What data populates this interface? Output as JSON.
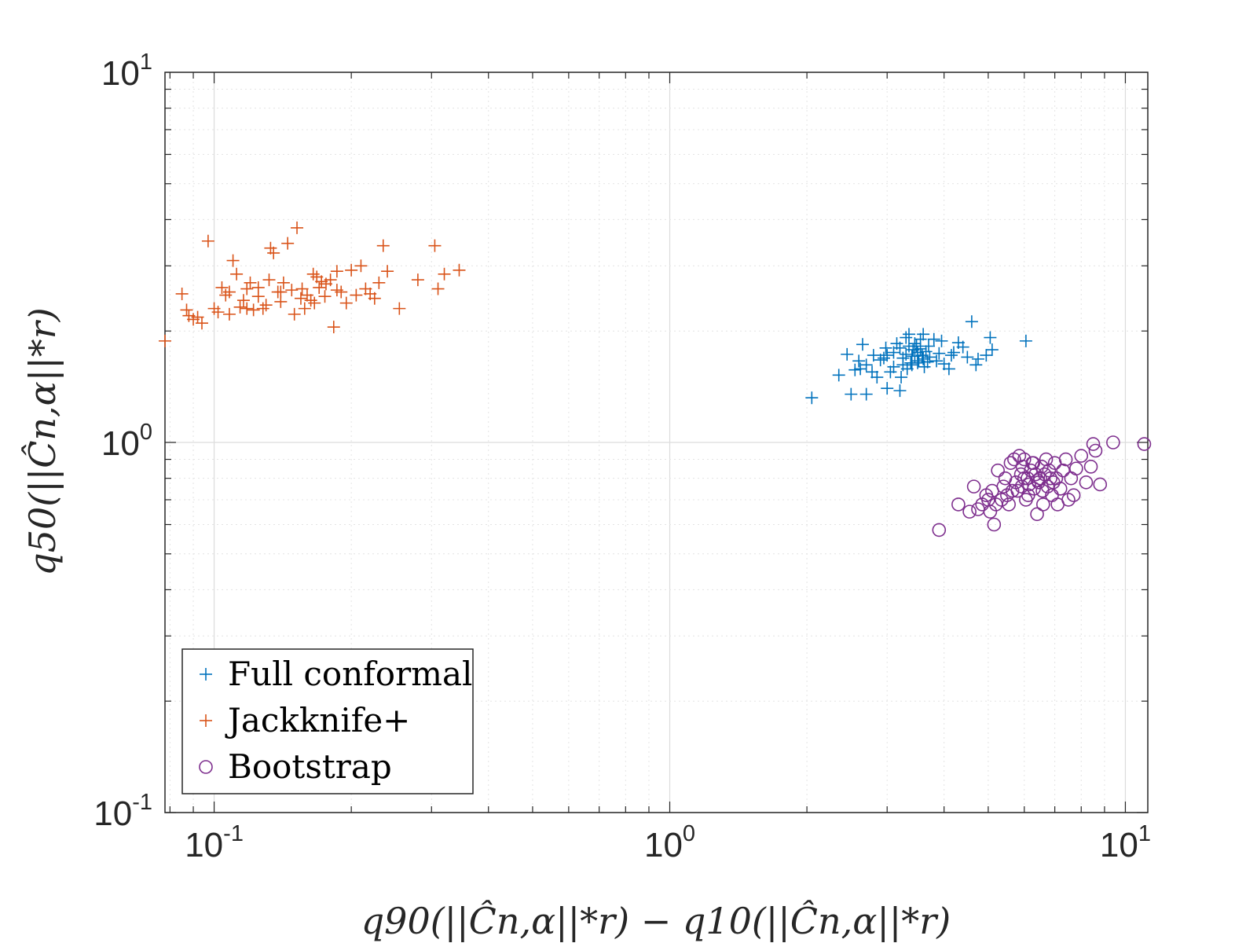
{
  "chart_data": {
    "type": "scatter",
    "title": "",
    "xlabel": "q90(||Ĉn,α||*r) − q10(||Ĉn,α||*r)",
    "ylabel": "q50(||Ĉn,α||*r)",
    "xscale": "log",
    "yscale": "log",
    "xlim": [
      0.078,
      11.2
    ],
    "ylim": [
      0.1,
      10
    ],
    "grid": true,
    "legend_location": "bottom-left",
    "x_ticks": [
      {
        "base": "10",
        "exp": "-1"
      },
      {
        "base": "10",
        "exp": "0"
      },
      {
        "base": "10",
        "exp": "1"
      }
    ],
    "y_ticks": [
      {
        "base": "10",
        "exp": "-1"
      },
      {
        "base": "10",
        "exp": "0"
      },
      {
        "base": "10",
        "exp": "1"
      }
    ],
    "series": [
      {
        "name": "Full conformal",
        "marker": "plus",
        "color": "#0072BD",
        "points": [
          [
            2.05,
            1.32
          ],
          [
            2.35,
            1.52
          ],
          [
            2.45,
            1.73
          ],
          [
            2.55,
            1.57
          ],
          [
            2.5,
            1.35
          ],
          [
            2.62,
            1.58
          ],
          [
            2.7,
            1.62
          ],
          [
            2.78,
            1.55
          ],
          [
            2.65,
            1.84
          ],
          [
            2.9,
            1.67
          ],
          [
            3.0,
            1.72
          ],
          [
            3.1,
            1.75
          ],
          [
            3.2,
            1.8
          ],
          [
            3.25,
            1.69
          ],
          [
            3.3,
            1.92
          ],
          [
            3.35,
            1.96
          ],
          [
            3.4,
            1.71
          ],
          [
            3.45,
            1.85
          ],
          [
            3.5,
            1.64
          ],
          [
            3.55,
            1.79
          ],
          [
            3.6,
            1.68
          ],
          [
            3.65,
            1.76
          ],
          [
            3.7,
            1.82
          ],
          [
            3.8,
            1.9
          ],
          [
            3.9,
            1.74
          ],
          [
            4.0,
            1.63
          ],
          [
            4.2,
            1.75
          ],
          [
            4.4,
            1.81
          ],
          [
            4.6,
            2.12
          ],
          [
            4.75,
            1.68
          ],
          [
            4.95,
            1.72
          ],
          [
            5.05,
            1.92
          ],
          [
            5.1,
            1.78
          ],
          [
            6.05,
            1.88
          ],
          [
            3.0,
            1.4
          ],
          [
            3.2,
            1.38
          ],
          [
            2.7,
            1.35
          ],
          [
            3.4,
            1.62
          ],
          [
            3.6,
            1.96
          ],
          [
            3.1,
            1.6
          ],
          [
            2.95,
            1.69
          ],
          [
            3.15,
            1.85
          ],
          [
            3.25,
            1.62
          ],
          [
            3.3,
            1.73
          ],
          [
            3.38,
            1.64
          ],
          [
            3.42,
            1.78
          ],
          [
            3.48,
            1.82
          ],
          [
            3.52,
            1.66
          ],
          [
            3.58,
            1.72
          ],
          [
            3.62,
            1.6
          ],
          [
            3.72,
            1.7
          ],
          [
            3.85,
            1.66
          ],
          [
            4.1,
            1.58
          ],
          [
            4.3,
            1.86
          ],
          [
            4.5,
            1.7
          ],
          [
            4.7,
            1.62
          ],
          [
            3.95,
            1.88
          ],
          [
            2.85,
            1.5
          ],
          [
            2.8,
            1.72
          ],
          [
            3.05,
            1.55
          ],
          [
            3.35,
            1.82
          ],
          [
            3.45,
            1.71
          ],
          [
            3.55,
            1.9
          ],
          [
            3.68,
            1.65
          ],
          [
            2.6,
            1.66
          ],
          [
            2.98,
            1.8
          ],
          [
            3.22,
            1.5
          ],
          [
            4.15,
            1.72
          ],
          [
            3.32,
            1.58
          ],
          [
            3.5,
            1.75
          ]
        ]
      },
      {
        "name": "Jackknife+",
        "marker": "plus",
        "color": "#D95319",
        "points": [
          [
            0.078,
            1.88
          ],
          [
            0.085,
            2.52
          ],
          [
            0.087,
            2.28
          ],
          [
            0.088,
            2.2
          ],
          [
            0.09,
            2.15
          ],
          [
            0.092,
            2.18
          ],
          [
            0.094,
            2.1
          ],
          [
            0.097,
            3.5
          ],
          [
            0.1,
            2.3
          ],
          [
            0.102,
            2.25
          ],
          [
            0.104,
            2.62
          ],
          [
            0.106,
            2.5
          ],
          [
            0.108,
            2.55
          ],
          [
            0.11,
            3.1
          ],
          [
            0.112,
            2.85
          ],
          [
            0.114,
            2.32
          ],
          [
            0.116,
            2.42
          ],
          [
            0.118,
            2.6
          ],
          [
            0.12,
            2.7
          ],
          [
            0.122,
            2.28
          ],
          [
            0.125,
            2.62
          ],
          [
            0.128,
            2.3
          ],
          [
            0.13,
            2.35
          ],
          [
            0.133,
            3.35
          ],
          [
            0.135,
            3.25
          ],
          [
            0.138,
            2.55
          ],
          [
            0.14,
            2.4
          ],
          [
            0.142,
            2.7
          ],
          [
            0.145,
            3.45
          ],
          [
            0.148,
            2.58
          ],
          [
            0.15,
            2.22
          ],
          [
            0.152,
            3.8
          ],
          [
            0.155,
            2.45
          ],
          [
            0.158,
            2.3
          ],
          [
            0.16,
            2.5
          ],
          [
            0.163,
            2.42
          ],
          [
            0.165,
            2.85
          ],
          [
            0.168,
            2.8
          ],
          [
            0.17,
            2.62
          ],
          [
            0.172,
            2.72
          ],
          [
            0.175,
            2.48
          ],
          [
            0.18,
            2.75
          ],
          [
            0.183,
            2.05
          ],
          [
            0.186,
            2.9
          ],
          [
            0.19,
            2.55
          ],
          [
            0.195,
            2.38
          ],
          [
            0.2,
            2.92
          ],
          [
            0.205,
            2.5
          ],
          [
            0.21,
            3.0
          ],
          [
            0.215,
            2.6
          ],
          [
            0.22,
            2.52
          ],
          [
            0.225,
            2.45
          ],
          [
            0.23,
            2.7
          ],
          [
            0.235,
            3.4
          ],
          [
            0.24,
            2.9
          ],
          [
            0.255,
            2.3
          ],
          [
            0.28,
            2.75
          ],
          [
            0.305,
            3.4
          ],
          [
            0.31,
            2.6
          ],
          [
            0.32,
            2.85
          ],
          [
            0.345,
            2.92
          ],
          [
            0.14,
            2.55
          ],
          [
            0.125,
            2.48
          ],
          [
            0.118,
            2.3
          ],
          [
            0.108,
            2.22
          ],
          [
            0.156,
            2.6
          ],
          [
            0.166,
            2.38
          ],
          [
            0.176,
            2.68
          ],
          [
            0.186,
            2.58
          ],
          [
            0.132,
            2.75
          ]
        ]
      },
      {
        "name": "Bootstrap",
        "marker": "circle",
        "color": "#7E2F8E",
        "points": [
          [
            3.9,
            0.58
          ],
          [
            4.3,
            0.68
          ],
          [
            4.55,
            0.65
          ],
          [
            4.65,
            0.76
          ],
          [
            4.75,
            0.66
          ],
          [
            4.85,
            0.68
          ],
          [
            4.95,
            0.72
          ],
          [
            5.0,
            0.7
          ],
          [
            5.05,
            0.65
          ],
          [
            5.1,
            0.74
          ],
          [
            5.15,
            0.6
          ],
          [
            5.2,
            0.68
          ],
          [
            5.25,
            0.84
          ],
          [
            5.35,
            0.7
          ],
          [
            5.45,
            0.8
          ],
          [
            5.5,
            0.72
          ],
          [
            5.55,
            0.68
          ],
          [
            5.6,
            0.88
          ],
          [
            5.7,
            0.9
          ],
          [
            5.75,
            0.78
          ],
          [
            5.8,
            0.74
          ],
          [
            5.85,
            0.92
          ],
          [
            5.9,
            0.82
          ],
          [
            5.95,
            0.86
          ],
          [
            6.0,
            0.9
          ],
          [
            6.05,
            0.7
          ],
          [
            6.1,
            0.8
          ],
          [
            6.15,
            0.77
          ],
          [
            6.2,
            0.84
          ],
          [
            6.25,
            0.88
          ],
          [
            6.3,
            0.75
          ],
          [
            6.35,
            0.82
          ],
          [
            6.4,
            0.64
          ],
          [
            6.45,
            0.78
          ],
          [
            6.5,
            0.8
          ],
          [
            6.55,
            0.86
          ],
          [
            6.6,
            0.68
          ],
          [
            6.65,
            0.82
          ],
          [
            6.7,
            0.9
          ],
          [
            6.75,
            0.76
          ],
          [
            6.8,
            0.84
          ],
          [
            6.85,
            0.8
          ],
          [
            6.9,
            0.72
          ],
          [
            6.95,
            0.78
          ],
          [
            7.0,
            0.88
          ],
          [
            7.1,
            0.68
          ],
          [
            7.2,
            0.75
          ],
          [
            7.3,
            0.84
          ],
          [
            7.4,
            0.9
          ],
          [
            7.5,
            0.7
          ],
          [
            7.6,
            0.8
          ],
          [
            7.7,
            0.72
          ],
          [
            7.8,
            0.85
          ],
          [
            8.0,
            0.92
          ],
          [
            8.2,
            0.78
          ],
          [
            8.4,
            0.86
          ],
          [
            8.6,
            0.95
          ],
          [
            8.8,
            0.77
          ],
          [
            9.4,
            1.0
          ],
          [
            8.5,
            0.99
          ],
          [
            11.0,
            0.99
          ],
          [
            5.65,
            0.74
          ],
          [
            6.12,
            0.72
          ],
          [
            6.28,
            0.88
          ],
          [
            6.42,
            0.79
          ],
          [
            5.92,
            0.76
          ],
          [
            6.58,
            0.74
          ],
          [
            7.05,
            0.8
          ],
          [
            5.4,
            0.76
          ],
          [
            6.0,
            0.8
          ]
        ]
      }
    ]
  }
}
